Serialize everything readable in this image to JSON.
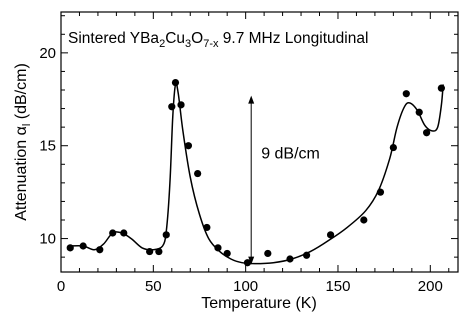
{
  "chart_data": {
    "type": "scatter",
    "title": {
      "prefix": "Sintered YBa",
      "sub1": "2",
      "mid1": "Cu",
      "sub2": "3",
      "mid2": "O",
      "sub3": "7-x",
      "suffix": " 9.7 MHz  Longitudinal"
    },
    "xlabel": "Temperature (K)",
    "ylabel": {
      "prefix": "Attenuation ",
      "symbol": "α",
      "sub": "l",
      "suffix": " (dB/cm)"
    },
    "xlim": [
      0,
      215
    ],
    "ylim": [
      8.2,
      22.2
    ],
    "xticks": [
      0,
      50,
      100,
      150,
      200
    ],
    "yticks": [
      10,
      15,
      20
    ],
    "annotation": {
      "text": "9 dB/cm",
      "x": 103,
      "y_from": 8.6,
      "y_to": 17.7
    },
    "points": [
      {
        "x": 5,
        "y": 9.5
      },
      {
        "x": 12,
        "y": 9.6
      },
      {
        "x": 21,
        "y": 9.4
      },
      {
        "x": 28,
        "y": 10.3
      },
      {
        "x": 34,
        "y": 10.3
      },
      {
        "x": 48,
        "y": 9.3
      },
      {
        "x": 53,
        "y": 9.3
      },
      {
        "x": 57,
        "y": 10.2
      },
      {
        "x": 60,
        "y": 17.1
      },
      {
        "x": 62,
        "y": 18.4
      },
      {
        "x": 65,
        "y": 17.2
      },
      {
        "x": 69,
        "y": 15.0
      },
      {
        "x": 74,
        "y": 13.5
      },
      {
        "x": 79,
        "y": 10.6
      },
      {
        "x": 85,
        "y": 9.5
      },
      {
        "x": 90,
        "y": 9.2
      },
      {
        "x": 101,
        "y": 8.7
      },
      {
        "x": 112,
        "y": 9.2
      },
      {
        "x": 124,
        "y": 8.9
      },
      {
        "x": 133,
        "y": 9.1
      },
      {
        "x": 146,
        "y": 10.2
      },
      {
        "x": 164,
        "y": 11.0
      },
      {
        "x": 173,
        "y": 12.5
      },
      {
        "x": 180,
        "y": 14.9
      },
      {
        "x": 187,
        "y": 17.8
      },
      {
        "x": 194,
        "y": 16.8
      },
      {
        "x": 198,
        "y": 15.7
      },
      {
        "x": 206,
        "y": 18.1
      }
    ],
    "fit_curve": [
      [
        5,
        9.6
      ],
      [
        12,
        9.6
      ],
      [
        18,
        9.4
      ],
      [
        23,
        9.7
      ],
      [
        28,
        10.3
      ],
      [
        33,
        10.3
      ],
      [
        38,
        10.0
      ],
      [
        44,
        9.5
      ],
      [
        50,
        9.4
      ],
      [
        55,
        9.6
      ],
      [
        57,
        10.4
      ],
      [
        59,
        13.0
      ],
      [
        60.5,
        16.5
      ],
      [
        62,
        18.3
      ],
      [
        63.5,
        17.8
      ],
      [
        66,
        15.8
      ],
      [
        70,
        13.3
      ],
      [
        75,
        11.3
      ],
      [
        80,
        10.0
      ],
      [
        86,
        9.3
      ],
      [
        92,
        8.9
      ],
      [
        98,
        8.7
      ],
      [
        105,
        8.65
      ],
      [
        115,
        8.7
      ],
      [
        125,
        8.9
      ],
      [
        135,
        9.3
      ],
      [
        145,
        9.9
      ],
      [
        155,
        10.6
      ],
      [
        165,
        11.5
      ],
      [
        172,
        12.6
      ],
      [
        178,
        14.3
      ],
      [
        182,
        16.0
      ],
      [
        186,
        17.1
      ],
      [
        189,
        17.3
      ],
      [
        193,
        16.9
      ],
      [
        197,
        16.1
      ],
      [
        201,
        15.8
      ],
      [
        204,
        16.0
      ],
      [
        206,
        17.2
      ],
      [
        207,
        18.3
      ]
    ]
  }
}
